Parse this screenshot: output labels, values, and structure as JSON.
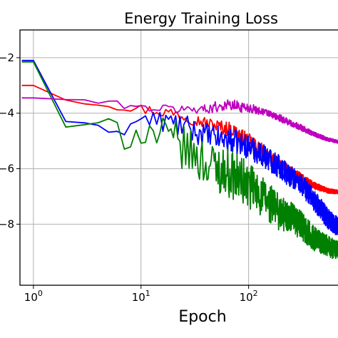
{
  "chart_data": {
    "type": "line",
    "title": "Energy Training Loss",
    "xlabel": "Epoch",
    "ylabel": "",
    "xscale": "log",
    "xlim": [
      0.75,
      720
    ],
    "ylim": [
      -10.2,
      -1.0
    ],
    "grid": true,
    "legend": "none",
    "x_ticks": [
      {
        "value": 1,
        "base": "10",
        "exp": "0"
      },
      {
        "value": 10,
        "base": "10",
        "exp": "1"
      },
      {
        "value": 100,
        "base": "10",
        "exp": "2"
      }
    ],
    "y_ticks": [
      {
        "value": -2,
        "label": "−2"
      },
      {
        "value": -4,
        "label": "−4"
      },
      {
        "value": -6,
        "label": "−6"
      },
      {
        "value": -8,
        "label": "−8"
      }
    ],
    "series": [
      {
        "color": "#ff0000",
        "trend": [
          [
            0.78,
            -3.0
          ],
          [
            1,
            -3.0
          ],
          [
            2,
            -3.5
          ],
          [
            5,
            -3.7
          ],
          [
            10,
            -3.85
          ],
          [
            20,
            -4.0
          ],
          [
            40,
            -4.35
          ],
          [
            70,
            -4.6
          ],
          [
            100,
            -5.0
          ],
          [
            150,
            -5.5
          ],
          [
            200,
            -5.9
          ],
          [
            300,
            -6.3
          ],
          [
            400,
            -6.6
          ],
          [
            550,
            -6.8
          ],
          [
            720,
            -6.85
          ]
        ],
        "noise": [
          0.0,
          0.0,
          0.05,
          0.12,
          0.18,
          0.2,
          0.2,
          0.25,
          0.25,
          0.25,
          0.2,
          0.15,
          0.12,
          0.08,
          0.06
        ]
      },
      {
        "color": "#0000ff",
        "trend": [
          [
            0.78,
            -2.1
          ],
          [
            1,
            -2.1
          ],
          [
            1.5,
            -3.5
          ],
          [
            2,
            -4.3
          ],
          [
            3,
            -4.4
          ],
          [
            5,
            -4.6
          ],
          [
            7,
            -4.6
          ],
          [
            10,
            -4.2
          ],
          [
            20,
            -4.35
          ],
          [
            40,
            -4.8
          ],
          [
            70,
            -5.0
          ],
          [
            100,
            -5.2
          ],
          [
            150,
            -5.6
          ],
          [
            200,
            -6.0
          ],
          [
            300,
            -6.5
          ],
          [
            400,
            -7.1
          ],
          [
            550,
            -7.8
          ],
          [
            720,
            -8.2
          ]
        ],
        "noise": [
          0.0,
          0.0,
          0.0,
          0.0,
          0.05,
          0.1,
          0.2,
          0.3,
          0.4,
          0.4,
          0.4,
          0.4,
          0.4,
          0.4,
          0.35,
          0.35,
          0.35,
          0.3
        ]
      },
      {
        "color": "#008000",
        "trend": [
          [
            0.78,
            -2.15
          ],
          [
            1,
            -2.15
          ],
          [
            1.5,
            -3.5
          ],
          [
            2,
            -4.5
          ],
          [
            3,
            -4.45
          ],
          [
            5,
            -4.3
          ],
          [
            6,
            -4.4
          ],
          [
            7,
            -4.8
          ],
          [
            10,
            -4.6
          ],
          [
            20,
            -5.0
          ],
          [
            40,
            -5.8
          ],
          [
            70,
            -6.2
          ],
          [
            100,
            -6.6
          ],
          [
            150,
            -7.2
          ],
          [
            200,
            -7.6
          ],
          [
            300,
            -8.0
          ],
          [
            400,
            -8.5
          ],
          [
            550,
            -8.8
          ],
          [
            720,
            -9.0
          ]
        ],
        "noise": [
          0.0,
          0.0,
          0.0,
          0.0,
          0.05,
          0.1,
          0.2,
          0.5,
          0.6,
          0.7,
          0.8,
          0.8,
          0.8,
          0.7,
          0.6,
          0.5,
          0.4,
          0.35,
          0.3
        ]
      },
      {
        "color": "#bf00bf",
        "trend": [
          [
            0.78,
            -3.45
          ],
          [
            1,
            -3.45
          ],
          [
            2,
            -3.5
          ],
          [
            4,
            -3.6
          ],
          [
            7,
            -3.7
          ],
          [
            10,
            -3.8
          ],
          [
            20,
            -3.85
          ],
          [
            40,
            -3.85
          ],
          [
            60,
            -3.7
          ],
          [
            80,
            -3.75
          ],
          [
            100,
            -3.8
          ],
          [
            150,
            -4.0
          ],
          [
            200,
            -4.2
          ],
          [
            300,
            -4.5
          ],
          [
            400,
            -4.75
          ],
          [
            550,
            -4.95
          ],
          [
            720,
            -5.05
          ]
        ],
        "noise": [
          0.0,
          0.0,
          0.05,
          0.1,
          0.12,
          0.12,
          0.15,
          0.15,
          0.2,
          0.2,
          0.15,
          0.12,
          0.12,
          0.1,
          0.08,
          0.06,
          0.05
        ]
      }
    ]
  }
}
